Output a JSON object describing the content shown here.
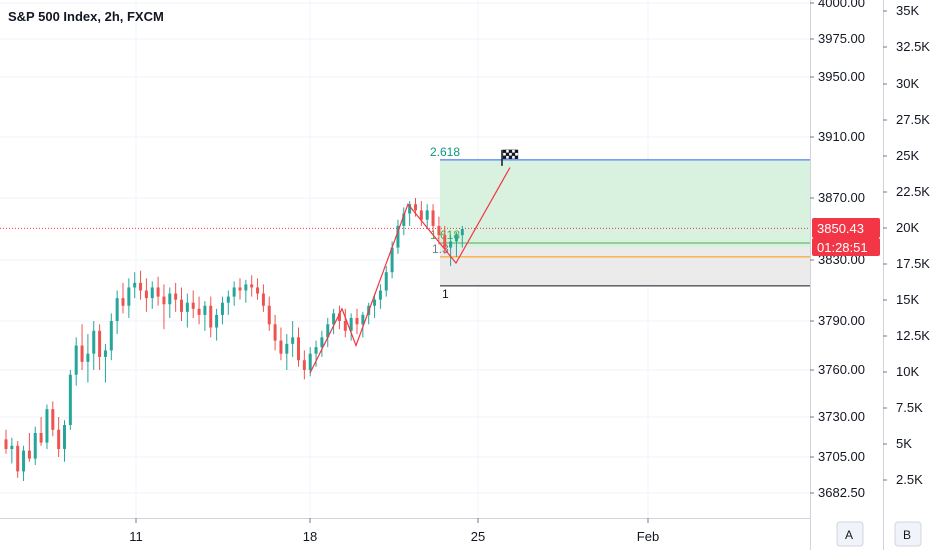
{
  "header": {
    "title": "S&P 500 Index, 2h, FXCM"
  },
  "controls": {
    "auto_label": "A",
    "btn2_label": "B"
  },
  "colors": {
    "up": "#26a69a",
    "down": "#ef5350",
    "pattern": "#f23645",
    "badge_price": "#f23645",
    "target_zone": "#d9f2e0",
    "stop_zone": "#ebebeb"
  },
  "chart_data": {
    "type": "candlestick",
    "title": "S&P 500 Index, 2h, FXCM",
    "y_axis": {
      "ticks": [
        "4000.00",
        "3975.00",
        "3950.00",
        "3910.00",
        "3870.00",
        "3830.00",
        "3790.00",
        "3760.00",
        "3730.00",
        "3705.00",
        "3682.50"
      ]
    },
    "volume_axis": {
      "ticks": [
        "35K",
        "32.5K",
        "30K",
        "27.5K",
        "25K",
        "22.5K",
        "20K",
        "17.5K",
        "15K",
        "12.5K",
        "10K",
        "7.5K",
        "5K",
        "2.5K"
      ]
    },
    "x_axis": {
      "ticks": [
        "11",
        "18",
        "25",
        "Feb"
      ]
    },
    "last_price": "3850.43",
    "countdown": "01:28:51",
    "fib_levels": [
      "2.618",
      "1.618",
      "1.3",
      "1"
    ],
    "pattern_points": [
      [
        3758,
        3760
      ],
      [
        3798,
        3800
      ],
      [
        3775,
        3772
      ],
      [
        3866,
        3868
      ],
      [
        3828,
        3826
      ],
      [
        3890,
        3892
      ]
    ],
    "candles": [
      [
        3716,
        3722,
        3707,
        3710
      ],
      [
        3710,
        3717,
        3701,
        3712
      ],
      [
        3712,
        3715,
        3692,
        3696
      ],
      [
        3696,
        3712,
        3690,
        3709
      ],
      [
        3709,
        3720,
        3702,
        3704
      ],
      [
        3704,
        3724,
        3700,
        3720
      ],
      [
        3720,
        3730,
        3712,
        3714
      ],
      [
        3714,
        3738,
        3710,
        3735
      ],
      [
        3735,
        3740,
        3718,
        3722
      ],
      [
        3722,
        3730,
        3705,
        3710
      ],
      [
        3710,
        3728,
        3702,
        3725
      ],
      [
        3725,
        3760,
        3722,
        3757
      ],
      [
        3757,
        3780,
        3750,
        3775
      ],
      [
        3775,
        3788,
        3760,
        3765
      ],
      [
        3765,
        3782,
        3752,
        3770
      ],
      [
        3770,
        3790,
        3760,
        3784
      ],
      [
        3784,
        3788,
        3760,
        3768
      ],
      [
        3768,
        3776,
        3752,
        3772
      ],
      [
        3772,
        3795,
        3766,
        3790
      ],
      [
        3790,
        3810,
        3782,
        3805
      ],
      [
        3805,
        3815,
        3795,
        3800
      ],
      [
        3800,
        3818,
        3792,
        3812
      ],
      [
        3812,
        3822,
        3805,
        3815
      ],
      [
        3815,
        3823,
        3804,
        3810
      ],
      [
        3810,
        3818,
        3796,
        3805
      ],
      [
        3805,
        3816,
        3798,
        3812
      ],
      [
        3812,
        3819,
        3800,
        3806
      ],
      [
        3806,
        3814,
        3785,
        3801
      ],
      [
        3801,
        3812,
        3792,
        3808
      ],
      [
        3808,
        3815,
        3796,
        3804
      ],
      [
        3804,
        3812,
        3790,
        3796
      ],
      [
        3796,
        3808,
        3786,
        3802
      ],
      [
        3802,
        3810,
        3792,
        3798
      ],
      [
        3798,
        3806,
        3788,
        3794
      ],
      [
        3794,
        3803,
        3784,
        3800
      ],
      [
        3800,
        3806,
        3780,
        3786
      ],
      [
        3786,
        3798,
        3778,
        3794
      ],
      [
        3794,
        3806,
        3788,
        3802
      ],
      [
        3802,
        3810,
        3794,
        3806
      ],
      [
        3806,
        3816,
        3800,
        3812
      ],
      [
        3812,
        3818,
        3804,
        3810
      ],
      [
        3810,
        3817,
        3802,
        3814
      ],
      [
        3814,
        3820,
        3806,
        3812
      ],
      [
        3812,
        3818,
        3804,
        3808
      ],
      [
        3808,
        3814,
        3796,
        3800
      ],
      [
        3800,
        3806,
        3784,
        3788
      ],
      [
        3788,
        3794,
        3772,
        3778
      ],
      [
        3778,
        3786,
        3766,
        3770
      ],
      [
        3770,
        3782,
        3760,
        3776
      ],
      [
        3776,
        3790,
        3768,
        3780
      ],
      [
        3780,
        3786,
        3762,
        3766
      ],
      [
        3766,
        3772,
        3754,
        3760
      ],
      [
        3760,
        3774,
        3756,
        3770
      ],
      [
        3770,
        3778,
        3762,
        3774
      ],
      [
        3774,
        3784,
        3768,
        3780
      ],
      [
        3780,
        3792,
        3774,
        3788
      ],
      [
        3788,
        3798,
        3782,
        3795
      ],
      [
        3795,
        3800,
        3785,
        3790
      ],
      [
        3790,
        3798,
        3780,
        3784
      ],
      [
        3784,
        3795,
        3778,
        3792
      ],
      [
        3792,
        3798,
        3782,
        3788
      ],
      [
        3788,
        3796,
        3780,
        3794
      ],
      [
        3794,
        3802,
        3788,
        3800
      ],
      [
        3800,
        3808,
        3792,
        3804
      ],
      [
        3804,
        3814,
        3798,
        3810
      ],
      [
        3810,
        3826,
        3806,
        3822
      ],
      [
        3822,
        3842,
        3818,
        3838
      ],
      [
        3838,
        3856,
        3834,
        3852
      ],
      [
        3852,
        3864,
        3846,
        3860
      ],
      [
        3860,
        3868,
        3852,
        3866
      ],
      [
        3866,
        3870,
        3858,
        3862
      ],
      [
        3862,
        3868,
        3852,
        3856
      ],
      [
        3856,
        3866,
        3850,
        3862
      ],
      [
        3862,
        3866,
        3848,
        3852
      ],
      [
        3852,
        3858,
        3840,
        3846
      ],
      [
        3846,
        3852,
        3834,
        3838
      ],
      [
        3838,
        3846,
        3826,
        3842
      ],
      [
        3842,
        3848,
        3832,
        3846
      ],
      [
        3846,
        3852,
        3838,
        3850
      ]
    ]
  }
}
